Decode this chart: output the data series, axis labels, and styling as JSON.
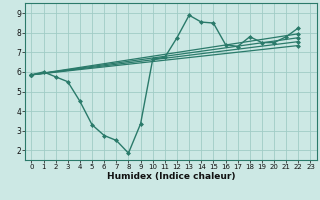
{
  "lines": [
    {
      "x": [
        0,
        1,
        2,
        3,
        4,
        5,
        6,
        7,
        8,
        9,
        10,
        11,
        12,
        13,
        14,
        15,
        16,
        17,
        18,
        19,
        20,
        21,
        22
      ],
      "y": [
        5.85,
        6.0,
        5.75,
        5.5,
        4.5,
        3.3,
        2.75,
        2.5,
        1.85,
        3.35,
        6.65,
        6.75,
        7.75,
        8.9,
        8.55,
        8.5,
        7.4,
        7.3,
        7.8,
        7.5,
        7.5,
        7.8,
        8.25
      ],
      "color": "#2a7a6a",
      "linewidth": 1.0,
      "marker": "D",
      "markersize": 2.0
    },
    {
      "x": [
        0,
        22
      ],
      "y": [
        5.85,
        7.35
      ],
      "color": "#2a7a6a",
      "linewidth": 0.9,
      "marker": "D",
      "markersize": 2.0
    },
    {
      "x": [
        0,
        22
      ],
      "y": [
        5.85,
        7.55
      ],
      "color": "#2a7a6a",
      "linewidth": 0.9,
      "marker": "D",
      "markersize": 2.0
    },
    {
      "x": [
        0,
        22
      ],
      "y": [
        5.85,
        7.75
      ],
      "color": "#2a7a6a",
      "linewidth": 0.9,
      "marker": "D",
      "markersize": 2.0
    },
    {
      "x": [
        0,
        22
      ],
      "y": [
        5.85,
        7.95
      ],
      "color": "#2a7a6a",
      "linewidth": 0.9,
      "marker": "D",
      "markersize": 2.0
    }
  ],
  "xlim": [
    -0.5,
    23.5
  ],
  "ylim": [
    1.5,
    9.5
  ],
  "xticks": [
    0,
    1,
    2,
    3,
    4,
    5,
    6,
    7,
    8,
    9,
    10,
    11,
    12,
    13,
    14,
    15,
    16,
    17,
    18,
    19,
    20,
    21,
    22,
    23
  ],
  "yticks": [
    2,
    3,
    4,
    5,
    6,
    7,
    8,
    9
  ],
  "xlabel": "Humidex (Indice chaleur)",
  "background_color": "#cce8e4",
  "grid_color": "#a0ccc6",
  "line_color": "#2a7a6a",
  "tick_label_fontsize": 5.5,
  "xlabel_fontsize": 6.5
}
